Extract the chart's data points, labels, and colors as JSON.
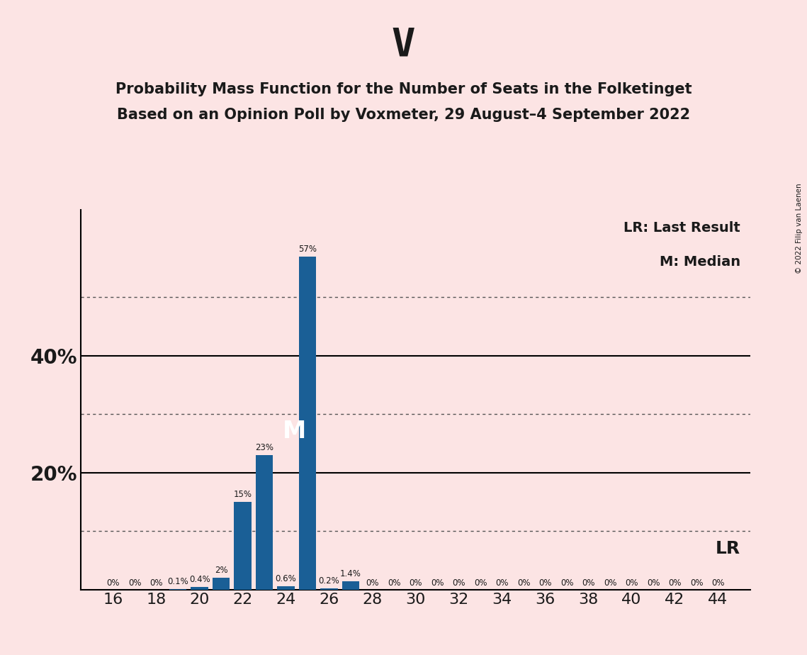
{
  "title": "V",
  "subtitle1": "Probability Mass Function for the Number of Seats in the Folketinget",
  "subtitle2": "Based on an Opinion Poll by Voxmeter, 29 August–4 September 2022",
  "copyright": "© 2022 Filip van Laenen",
  "background_color": "#fce4e4",
  "bar_color": "#1a5f96",
  "seats": [
    16,
    17,
    18,
    19,
    20,
    21,
    22,
    23,
    24,
    25,
    26,
    27,
    28,
    29,
    30,
    31,
    32,
    33,
    34,
    35,
    36,
    37,
    38,
    39,
    40,
    41,
    42,
    43,
    44
  ],
  "probabilities": [
    0.0,
    0.0,
    0.0,
    0.1,
    0.4,
    2.0,
    15.0,
    23.0,
    0.6,
    57.0,
    0.2,
    1.4,
    0.0,
    0.0,
    0.0,
    0.0,
    0.0,
    0.0,
    0.0,
    0.0,
    0.0,
    0.0,
    0.0,
    0.0,
    0.0,
    0.0,
    0.0,
    0.0,
    0.0
  ],
  "bar_labels": [
    "0%",
    "0%",
    "0%",
    "0.1%",
    "0.4%",
    "2%",
    "15%",
    "23%",
    "0.6%",
    "57%",
    "0.2%",
    "1.4%",
    "0%",
    "0%",
    "0%",
    "0%",
    "0%",
    "0%",
    "0%",
    "0%",
    "0%",
    "0%",
    "0%",
    "0%",
    "0%",
    "0%",
    "0%",
    "0%",
    "0%"
  ],
  "median_seat": 25,
  "ylim_max": 65,
  "solid_yticks": [
    20,
    40
  ],
  "dotted_yticks": [
    10,
    30,
    50
  ],
  "legend_lr": "LR: Last Result",
  "legend_m": "M: Median",
  "lr_label": "LR",
  "m_label": "M",
  "xlim_min": 14.5,
  "xlim_max": 45.5
}
